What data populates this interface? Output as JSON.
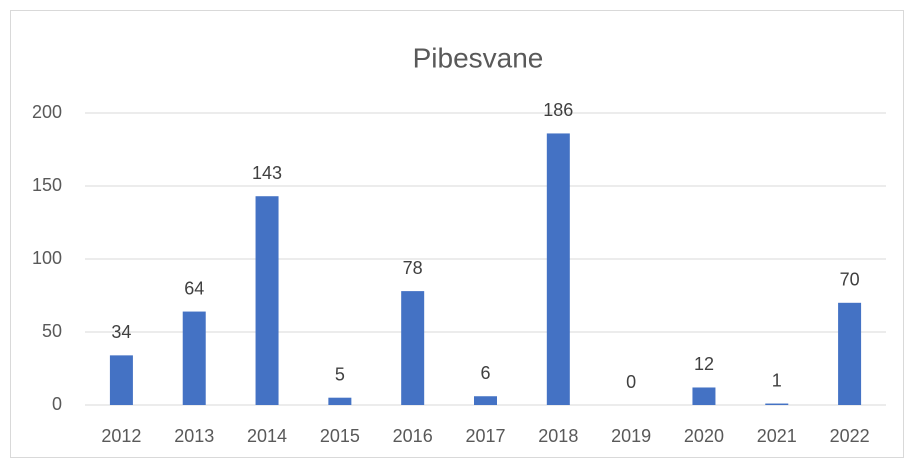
{
  "chart_data": {
    "type": "bar",
    "title": "Pibesvane",
    "categories": [
      "2012",
      "2013",
      "2014",
      "2015",
      "2016",
      "2017",
      "2018",
      "2019",
      "2020",
      "2021",
      "2022"
    ],
    "values": [
      34,
      64,
      143,
      5,
      78,
      6,
      186,
      0,
      12,
      1,
      70
    ],
    "color": "#4472c4",
    "ylim": [
      0,
      200
    ],
    "yticks": [
      0,
      50,
      100,
      150,
      200
    ],
    "grid": true
  }
}
